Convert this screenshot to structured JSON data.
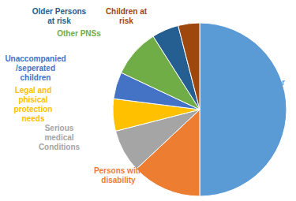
{
  "chart_data": {
    "type": "pie",
    "categories": [
      "Single Parent/Caregiever",
      "Persons with disability",
      "Serious medical Conditions",
      "Legal and phisical protection needs",
      "Unaccompanied /seperated children",
      "Other PNSs",
      "Older Persons at risk",
      "Children at risk"
    ],
    "values": [
      50,
      13,
      8,
      6,
      5,
      9,
      5,
      4
    ],
    "colors": [
      "#5b9bd5",
      "#ed7d31",
      "#a5a5a5",
      "#ffc000",
      "#4472c4",
      "#70ad47",
      "#255e91",
      "#9e480e"
    ]
  }
}
